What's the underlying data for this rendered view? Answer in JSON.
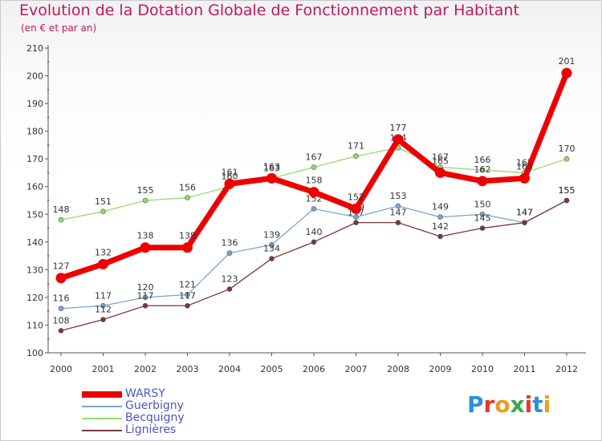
{
  "chart_data": {
    "type": "line",
    "title": "Evolution de la Dotation Globale de Fonctionnement par Habitant",
    "subtitle": "(en € et par an)",
    "xlabel": "",
    "ylabel": "",
    "x": [
      "2000",
      "2001",
      "2002",
      "2003",
      "2004",
      "2005",
      "2006",
      "2007",
      "2008",
      "2009",
      "2010",
      "2011",
      "2012"
    ],
    "ylim": [
      100,
      210
    ],
    "yticks": [
      "100",
      "110",
      "120",
      "130",
      "140",
      "150",
      "160",
      "170",
      "180",
      "190",
      "200",
      "210"
    ],
    "grid": false,
    "legend_position": "bottom-left",
    "series": [
      {
        "name": "WARSY",
        "color": "#ee0000",
        "emphasis": true,
        "values": [
          127,
          132,
          138,
          138,
          161,
          163,
          158,
          152,
          177,
          165,
          162,
          163,
          201
        ]
      },
      {
        "name": "Guerbigny",
        "color": "#7aa6d0",
        "values": [
          116,
          117,
          120,
          121,
          136,
          139,
          152,
          149,
          153,
          149,
          150,
          147,
          155
        ]
      },
      {
        "name": "Becquigny",
        "color": "#94dc6e",
        "values": [
          148,
          151,
          155,
          156,
          160,
          163,
          167,
          171,
          174,
          167,
          166,
          165,
          170
        ]
      },
      {
        "name": "Lignières",
        "color": "#7a3838",
        "values": [
          108,
          112,
          117,
          117,
          123,
          134,
          140,
          147,
          147,
          142,
          145,
          147,
          155
        ]
      }
    ]
  },
  "logo": {
    "text": "Proxiti"
  }
}
